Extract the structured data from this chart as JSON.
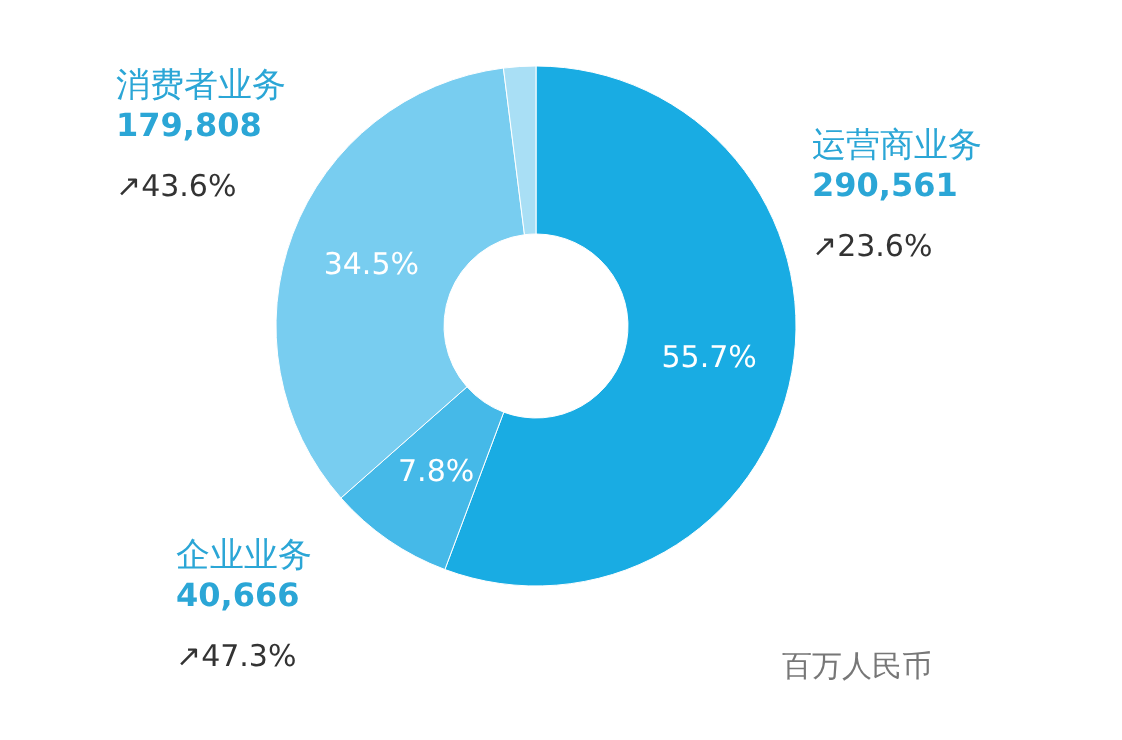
{
  "chart_data": {
    "type": "donut",
    "categories": [
      "运营商业务",
      "企业业务",
      "消费者业务",
      null
    ],
    "values": [
      55.7,
      7.8,
      34.5,
      2.0
    ],
    "colors": [
      "#19ace3",
      "#45b9e8",
      "#78cdf0",
      "#a9dff5"
    ],
    "value_labels": [
      "55.7%",
      "7.8%",
      "34.5%",
      null
    ],
    "annotations": [
      "290,561",
      "↗23.6%",
      "40,666",
      "↗47.3%",
      "179,808",
      "↗43.6%",
      "百万人民币"
    ]
  }
}
